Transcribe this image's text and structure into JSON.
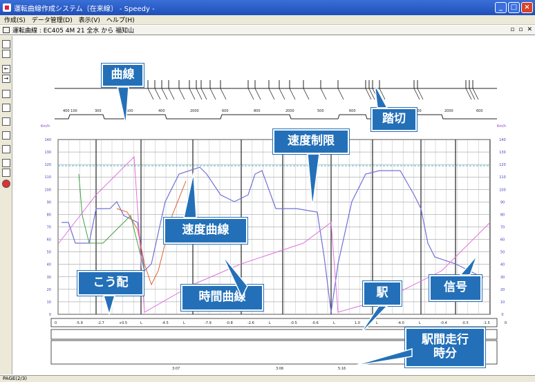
{
  "window": {
    "title": "運転曲線作成システム〔在来線〕 - Speedy -"
  },
  "menu": [
    "作成(S)",
    "データ管理(D)",
    "表示(V)",
    "ヘルプ(H)"
  ],
  "document": {
    "title": "運転曲線 : EC405 4M 21 全水  から 福知山"
  },
  "status": {
    "page": "PAGE(2/3)"
  },
  "callouts": {
    "curve": "曲線",
    "crossing": "踏切",
    "speed_limit": "速度制限",
    "speed_curve": "速度曲線",
    "gradient": "こう配",
    "time_curve": "時間曲線",
    "station": "駅",
    "signal": "信号",
    "run_time": "駅間走行\n時分"
  },
  "left_axis": {
    "unit": "Km/h",
    "ticks": [
      "140",
      "130",
      "120",
      "110",
      "100",
      "90",
      "80",
      "70",
      "60",
      "50",
      "40",
      "30",
      "20",
      "10",
      "0"
    ]
  },
  "right_axis": {
    "unit": "Km/h",
    "ticks": [
      "140",
      "130",
      "120",
      "110",
      "100",
      "90",
      "80",
      "70",
      "60",
      "50",
      "40",
      "30",
      "20",
      "10",
      "0"
    ]
  },
  "gradients": [
    "0",
    "-5.9",
    "-2.7",
    "+0.5",
    "L",
    "-4.5",
    "L",
    "-7.9",
    "-0.8",
    "-2.6",
    "L",
    "-0.5",
    "-0.6",
    "L",
    "1.0",
    "L",
    "-4.0",
    "L",
    "-0.4",
    "-0.5",
    "-1.5",
    "0"
  ],
  "curve_radii": [
    "400 100",
    "300",
    "500",
    "400",
    "2000",
    "600",
    "800",
    "2000",
    "500",
    "600",
    "300",
    "2000",
    "2000",
    "600"
  ],
  "run_times": [
    "3:07",
    "3:06",
    "5:16"
  ],
  "colors": {
    "speed": "#7070d8",
    "limit": "#3cb4c8",
    "time": "#e070e0",
    "brake": "#e06030",
    "green": "#40a040",
    "callout": "#2470b8"
  }
}
